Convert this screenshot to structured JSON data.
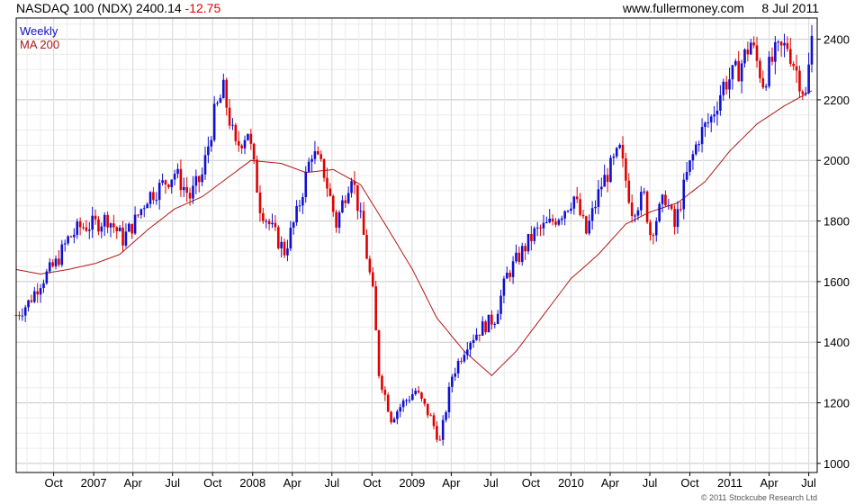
{
  "header": {
    "title": "NASDAQ 100 (NDX)",
    "last": "2400.14",
    "change": "-12.75",
    "source": "www.fullermoney.com",
    "date": "8 Jul 2011"
  },
  "footer": {
    "copyright": "© 2011 Stockcube Research Ltd"
  },
  "colors": {
    "up": "#1010d0",
    "down": "#e00000",
    "ma": "#b01818",
    "grid": "#d8d8d8"
  },
  "chart_data": {
    "type": "candlestick",
    "legend": [
      {
        "label": "Weekly",
        "color": "#1010c0"
      },
      {
        "label": "MA 200",
        "color": "#b01818"
      }
    ],
    "ylim": [
      970,
      2470
    ],
    "y_ticks": [
      1000,
      1200,
      1400,
      1600,
      1800,
      2000,
      2200,
      2400
    ],
    "x_ticks": [
      "Oct",
      "2007",
      "Apr",
      "Jul",
      "Oct",
      "2008",
      "Apr",
      "Jul",
      "Oct",
      "2009",
      "Apr",
      "Jul",
      "Oct",
      "2010",
      "Apr",
      "Jul",
      "Oct",
      "2011",
      "Apr",
      "Jul"
    ],
    "x_start": "2006-07-07",
    "x_end": "2011-07-08",
    "grid": true,
    "legend_placement": "top-left",
    "price_path": [
      [
        "2006-07-07",
        1490
      ],
      [
        "2006-08-04",
        1530
      ],
      [
        "2006-09-01",
        1600
      ],
      [
        "2006-10-06",
        1660
      ],
      [
        "2006-11-03",
        1740
      ],
      [
        "2006-12-01",
        1780
      ],
      [
        "2007-01-05",
        1790
      ],
      [
        "2007-02-02",
        1810
      ],
      [
        "2007-03-09",
        1740
      ],
      [
        "2007-04-06",
        1800
      ],
      [
        "2007-05-04",
        1880
      ],
      [
        "2007-06-01",
        1910
      ],
      [
        "2007-07-06",
        1960
      ],
      [
        "2007-08-10",
        1880
      ],
      [
        "2007-09-07",
        1950
      ],
      [
        "2007-10-05",
        2150
      ],
      [
        "2007-10-26",
        2230
      ],
      [
        "2007-11-23",
        2040
      ],
      [
        "2007-12-21",
        2100
      ],
      [
        "2008-01-18",
        1850
      ],
      [
        "2008-02-15",
        1770
      ],
      [
        "2008-03-14",
        1700
      ],
      [
        "2008-04-11",
        1820
      ],
      [
        "2008-05-16",
        2030
      ],
      [
        "2008-06-13",
        1960
      ],
      [
        "2008-07-11",
        1790
      ],
      [
        "2008-08-15",
        1960
      ],
      [
        "2008-09-12",
        1750
      ],
      [
        "2008-10-03",
        1560
      ],
      [
        "2008-10-17",
        1300
      ],
      [
        "2008-11-14",
        1150
      ],
      [
        "2008-12-12",
        1200
      ],
      [
        "2009-01-09",
        1240
      ],
      [
        "2009-02-13",
        1150
      ],
      [
        "2009-03-06",
        1070
      ],
      [
        "2009-04-03",
        1290
      ],
      [
        "2009-05-08",
        1400
      ],
      [
        "2009-06-12",
        1450
      ],
      [
        "2009-07-10",
        1480
      ],
      [
        "2009-08-07",
        1620
      ],
      [
        "2009-09-11",
        1700
      ],
      [
        "2009-10-09",
        1760
      ],
      [
        "2009-11-13",
        1790
      ],
      [
        "2009-12-11",
        1830
      ],
      [
        "2010-01-08",
        1880
      ],
      [
        "2010-02-05",
        1760
      ],
      [
        "2010-03-12",
        1920
      ],
      [
        "2010-04-23",
        2030
      ],
      [
        "2010-05-21",
        1840
      ],
      [
        "2010-06-18",
        1880
      ],
      [
        "2010-07-02",
        1760
      ],
      [
        "2010-08-06",
        1880
      ],
      [
        "2010-08-27",
        1780
      ],
      [
        "2010-09-24",
        1950
      ],
      [
        "2010-10-22",
        2080
      ],
      [
        "2010-11-19",
        2140
      ],
      [
        "2010-12-17",
        2250
      ],
      [
        "2011-01-21",
        2300
      ],
      [
        "2011-02-18",
        2390
      ],
      [
        "2011-03-18",
        2260
      ],
      [
        "2011-04-15",
        2350
      ],
      [
        "2011-05-13",
        2380
      ],
      [
        "2011-06-24",
        2210
      ],
      [
        "2011-07-08",
        2400
      ]
    ],
    "ma_200": [
      [
        "2006-07-07",
        1640
      ],
      [
        "2006-09-01",
        1625
      ],
      [
        "2006-11-03",
        1640
      ],
      [
        "2007-01-05",
        1660
      ],
      [
        "2007-03-02",
        1690
      ],
      [
        "2007-05-04",
        1770
      ],
      [
        "2007-07-06",
        1840
      ],
      [
        "2007-09-07",
        1880
      ],
      [
        "2007-11-02",
        1940
      ],
      [
        "2007-12-28",
        2000
      ],
      [
        "2008-03-07",
        1990
      ],
      [
        "2008-05-02",
        1960
      ],
      [
        "2008-07-04",
        1970
      ],
      [
        "2008-09-05",
        1920
      ],
      [
        "2008-10-31",
        1790
      ],
      [
        "2009-01-02",
        1640
      ],
      [
        "2009-02-27",
        1480
      ],
      [
        "2009-05-01",
        1370
      ],
      [
        "2009-07-03",
        1290
      ],
      [
        "2009-08-28",
        1370
      ],
      [
        "2009-10-30",
        1490
      ],
      [
        "2010-01-01",
        1610
      ],
      [
        "2010-03-05",
        1690
      ],
      [
        "2010-05-07",
        1790
      ],
      [
        "2010-07-02",
        1830
      ],
      [
        "2010-09-03",
        1860
      ],
      [
        "2010-11-05",
        1930
      ],
      [
        "2010-12-31",
        2030
      ],
      [
        "2011-03-04",
        2120
      ],
      [
        "2011-05-06",
        2180
      ],
      [
        "2011-07-08",
        2230
      ]
    ]
  }
}
